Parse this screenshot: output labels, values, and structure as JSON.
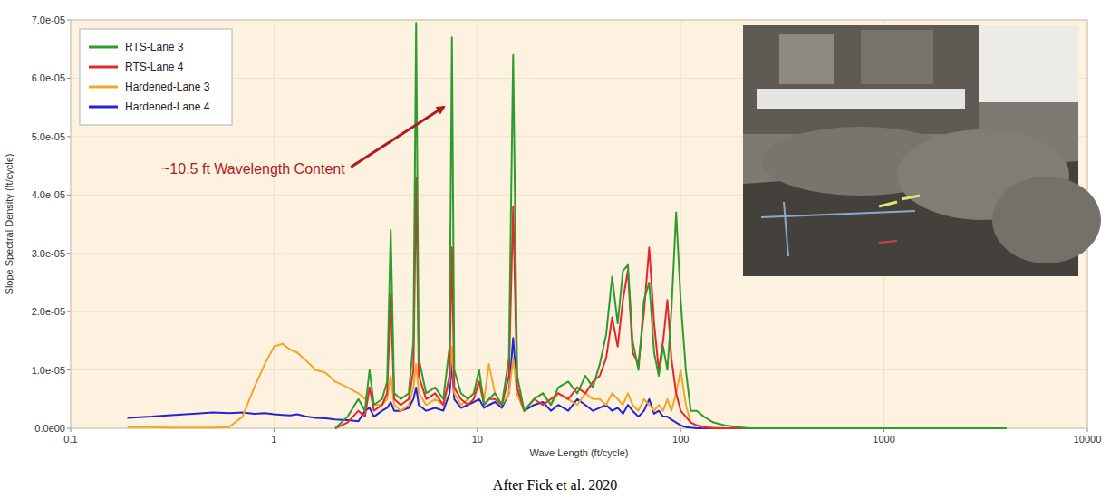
{
  "chart_data": {
    "type": "line",
    "x_label": "Wave Length (ft/cycle)",
    "y_label": "Slope Spectral Density (ft/cycle)",
    "annotations": [
      "~10.5 ft Wavelength Content"
    ],
    "caption": "After Fick et al. 2020",
    "log": "x",
    "grid": true,
    "legend": "top-left",
    "xlim": [
      0.1,
      10000
    ],
    "xticks": [
      0.1,
      1,
      10,
      100,
      1000,
      10000
    ],
    "ylim": [
      0,
      7e-05
    ],
    "yticks": [
      {
        "value": 0,
        "label": "0.0e00"
      },
      {
        "value": 1e-05,
        "label": "1.0e-05"
      },
      {
        "value": 2e-05,
        "label": "2.0e-05"
      },
      {
        "value": 3e-05,
        "label": "3.0e-05"
      },
      {
        "value": 4e-05,
        "label": "4.0e-05"
      },
      {
        "value": 5e-05,
        "label": "5.0e-05"
      },
      {
        "value": 6e-05,
        "label": "6.0e-05"
      },
      {
        "value": 7e-05,
        "label": "7.0e-05"
      }
    ],
    "x": [
      0.19,
      0.25,
      0.3,
      0.4,
      0.5,
      0.6,
      0.7,
      0.8,
      0.9,
      1.0,
      1.1,
      1.2,
      1.3,
      1.45,
      1.6,
      1.8,
      2.0,
      2.3,
      2.6,
      2.8,
      2.95,
      3.1,
      3.4,
      3.6,
      3.75,
      3.9,
      4.2,
      4.6,
      4.85,
      5.0,
      5.15,
      5.6,
      6.2,
      6.8,
      7.3,
      7.5,
      7.7,
      8.3,
      9.0,
      9.6,
      10.2,
      10.8,
      11.4,
      12.2,
      13.2,
      14.3,
      15.0,
      15.7,
      17,
      19,
      21,
      23,
      25,
      28,
      31,
      34,
      37,
      40,
      43,
      46,
      49,
      52,
      55,
      58,
      62,
      66,
      70,
      74,
      78,
      82,
      86,
      90,
      95,
      100,
      106,
      112,
      120,
      130,
      145,
      165,
      190,
      220,
      300,
      1000,
      4000
    ],
    "series": [
      {
        "name": "RTS-Lane 3",
        "color": "#2e9b2e",
        "values": [
          null,
          null,
          null,
          null,
          null,
          null,
          null,
          null,
          null,
          null,
          null,
          null,
          null,
          null,
          null,
          null,
          0,
          2e-06,
          5e-06,
          3e-06,
          1e-05,
          4e-06,
          5e-06,
          8e-06,
          3.4e-05,
          6e-06,
          5e-06,
          6e-06,
          1.5e-05,
          6.95e-05,
          1.2e-05,
          6e-06,
          7e-06,
          5e-06,
          1.4e-05,
          6.7e-05,
          1e-05,
          6e-06,
          5e-06,
          6e-06,
          1e-05,
          4e-06,
          5e-06,
          6e-06,
          4e-06,
          1.2e-05,
          6.4e-05,
          9e-06,
          3e-06,
          5e-06,
          6e-06,
          4e-06,
          7e-06,
          8e-06,
          6e-06,
          9e-06,
          7e-06,
          1.1e-05,
          1.6e-05,
          2.6e-05,
          1.8e-05,
          2.7e-05,
          2.8e-05,
          1.5e-05,
          1e-05,
          2.2e-05,
          2.5e-05,
          1.3e-05,
          9e-06,
          1.4e-05,
          1e-05,
          2e-05,
          3.7e-05,
          2.2e-05,
          1e-05,
          3e-06,
          3e-06,
          2e-06,
          1e-06,
          5e-07,
          2e-07,
          0,
          0,
          0,
          0
        ]
      },
      {
        "name": "RTS-Lane 4",
        "color": "#e8262a",
        "values": [
          null,
          null,
          null,
          null,
          null,
          null,
          null,
          null,
          null,
          null,
          null,
          null,
          null,
          null,
          null,
          null,
          0,
          1e-06,
          3e-06,
          2e-06,
          7e-06,
          3e-06,
          4e-06,
          6e-06,
          2.3e-05,
          5e-06,
          4e-06,
          5e-06,
          1e-05,
          4.3e-05,
          9e-06,
          5e-06,
          6e-06,
          4e-06,
          9e-06,
          3.1e-05,
          7e-06,
          5e-06,
          4e-06,
          5e-06,
          8e-06,
          4e-06,
          5e-06,
          5e-06,
          4e-06,
          9e-06,
          3.8e-05,
          7e-06,
          3e-06,
          5e-06,
          4e-06,
          5e-06,
          6e-06,
          5e-06,
          7e-06,
          6e-06,
          8e-06,
          9e-06,
          1.2e-05,
          1.9e-05,
          1.4e-05,
          2.2e-05,
          2.7e-05,
          1.3e-05,
          1.1e-05,
          2e-05,
          3.1e-05,
          1.8e-05,
          1e-05,
          1.5e-05,
          2.2e-05,
          1.2e-05,
          6e-06,
          3e-06,
          2e-06,
          1e-06,
          5e-07,
          2e-07,
          0,
          0,
          0,
          0,
          0,
          0,
          0
        ]
      },
      {
        "name": "Hardened-Lane 3",
        "color": "#f5a524",
        "values": [
          2e-07,
          2e-07,
          1e-07,
          1e-07,
          1e-07,
          2e-07,
          2e-06,
          7e-06,
          1.1e-05,
          1.4e-05,
          1.45e-05,
          1.35e-05,
          1.3e-05,
          1.15e-05,
          1e-05,
          9.5e-06,
          8e-06,
          7e-06,
          6e-06,
          5e-06,
          7e-06,
          4e-06,
          4e-06,
          5e-06,
          9e-06,
          4e-06,
          3e-06,
          4e-06,
          7e-06,
          1.1e-05,
          6e-06,
          4e-06,
          5e-06,
          4e-06,
          8e-06,
          1.4e-05,
          6e-06,
          4e-06,
          5e-06,
          6e-06,
          8e-06,
          5e-06,
          1.1e-05,
          6e-06,
          4e-06,
          6e-06,
          1.2e-05,
          6e-06,
          3e-06,
          5e-06,
          6e-06,
          4e-06,
          6e-06,
          5e-06,
          4e-06,
          6e-06,
          5e-06,
          5e-06,
          4e-06,
          6e-06,
          5e-06,
          4e-06,
          6e-06,
          4e-06,
          3e-06,
          5e-06,
          4e-06,
          3e-06,
          4e-06,
          3e-06,
          5e-06,
          3e-06,
          6e-06,
          1e-05,
          4e-06,
          1e-06,
          5e-07,
          2e-07,
          1e-07,
          0,
          0,
          0,
          0,
          0,
          0
        ]
      },
      {
        "name": "Hardened-Lane 4",
        "color": "#2424d6",
        "values": [
          1.8e-06,
          2e-06,
          2.2e-06,
          2.5e-06,
          2.7e-06,
          2.6e-06,
          2.7e-06,
          2.5e-06,
          2.6e-06,
          2.4e-06,
          2.3e-06,
          2.2e-06,
          2.4e-06,
          2e-06,
          1.8e-06,
          1.7e-06,
          1.5e-06,
          1.4e-06,
          1.2e-06,
          3e-06,
          3.5e-06,
          2e-06,
          3e-06,
          3.5e-06,
          4.5e-06,
          3e-06,
          3e-06,
          3.5e-06,
          5e-06,
          7e-06,
          4e-06,
          3e-06,
          3.5e-06,
          3e-06,
          6e-06,
          1.1e-05,
          5e-06,
          3.5e-06,
          4e-06,
          4.5e-06,
          5e-06,
          3.5e-06,
          4e-06,
          4.5e-06,
          3.5e-06,
          6e-06,
          1.55e-05,
          6e-06,
          3e-06,
          4e-06,
          4.5e-06,
          3e-06,
          4e-06,
          3e-06,
          5e-06,
          4e-06,
          3e-06,
          3.5e-06,
          4e-06,
          3e-06,
          3.5e-06,
          2.5e-06,
          4e-06,
          3e-06,
          2e-06,
          3e-06,
          5e-06,
          2.5e-06,
          3e-06,
          2e-06,
          2e-06,
          1.5e-06,
          1e-06,
          5e-07,
          2e-07,
          1e-07,
          0,
          0,
          0,
          0,
          0,
          0,
          0,
          0,
          0
        ]
      }
    ]
  }
}
